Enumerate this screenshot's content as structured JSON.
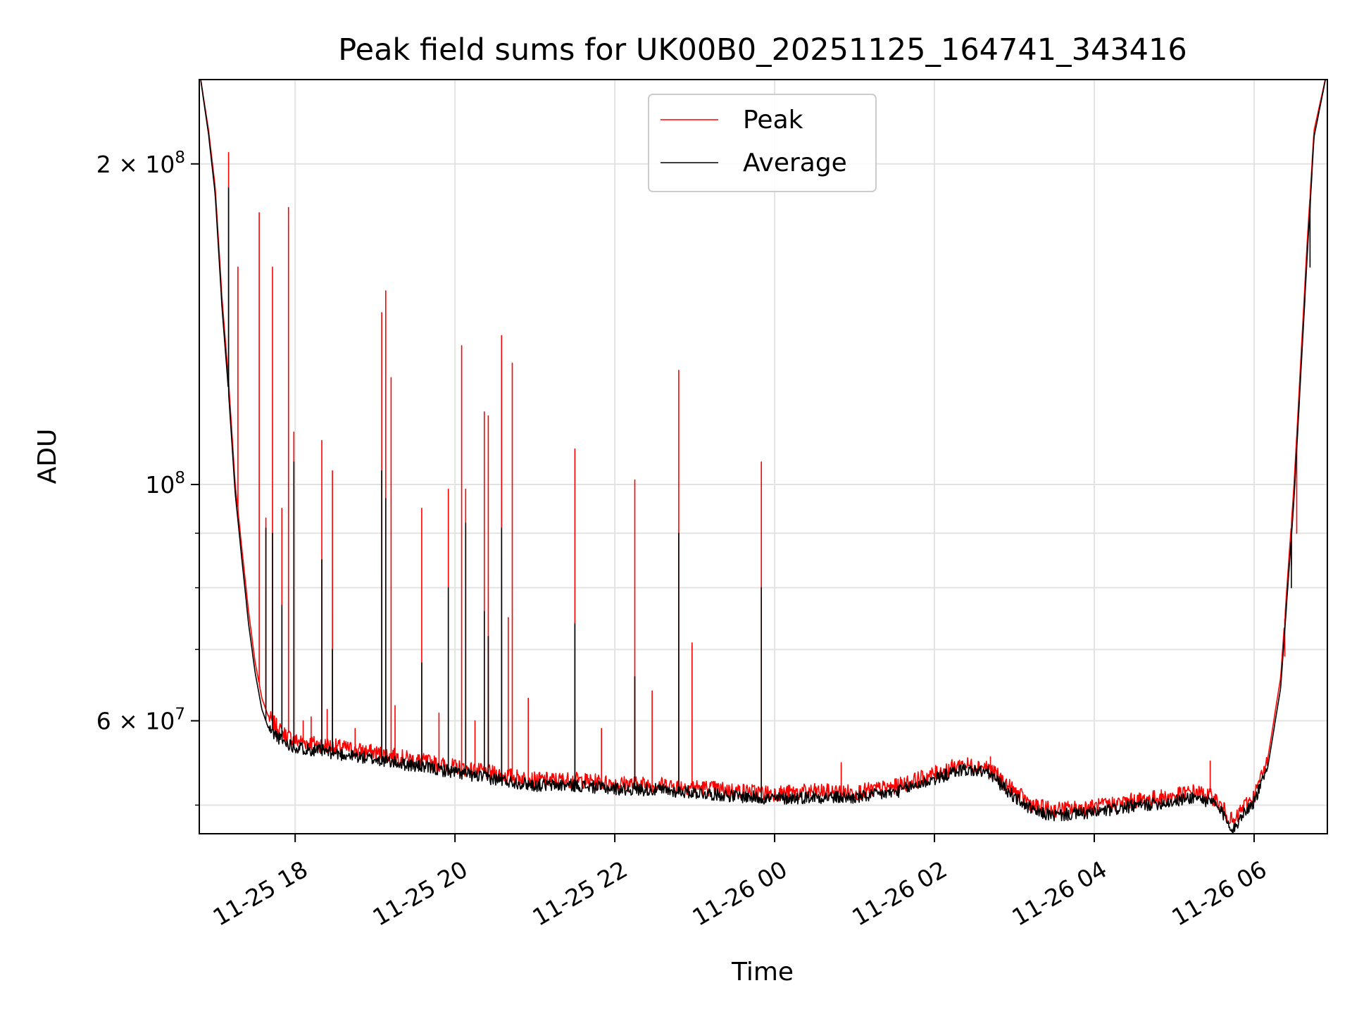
{
  "colors": {
    "peak": "#ff0000",
    "average": "#000000",
    "grid": "#e3e3e3",
    "frame": "#000000"
  },
  "chart_data": {
    "type": "line",
    "title": "Peak field sums for UK00B0_20251125_164741_343416",
    "xlabel": "Time",
    "ylabel": "ADU",
    "y_scale": "log",
    "ylim": [
      47000000,
      240000000
    ],
    "xlim": [
      "2025-11-25 16:48",
      "2025-11-26 06:55"
    ],
    "grid": true,
    "legend_position": "upper-center",
    "x_ticks": [
      {
        "t": "2025-11-25 18:00",
        "label": "11-25 18"
      },
      {
        "t": "2025-11-25 20:00",
        "label": "11-25 20"
      },
      {
        "t": "2025-11-25 22:00",
        "label": "11-25 22"
      },
      {
        "t": "2025-11-26 00:00",
        "label": "11-26 00"
      },
      {
        "t": "2025-11-26 02:00",
        "label": "11-26 02"
      },
      {
        "t": "2025-11-26 04:00",
        "label": "11-26 04"
      },
      {
        "t": "2025-11-26 06:00",
        "label": "11-26 06"
      }
    ],
    "y_major_ticks": [
      {
        "v": 200000000,
        "mantissa": "2",
        "exp": "8"
      },
      {
        "v": 100000000,
        "mantissa": "",
        "exp": "8"
      },
      {
        "v": 60000000,
        "mantissa": "6",
        "exp": "7"
      }
    ],
    "y_minor_ticks": [
      50000000,
      70000000,
      80000000,
      90000000
    ],
    "series": [
      {
        "name": "Peak",
        "color": "#ff0000",
        "baseline": [
          [
            "2025-11-25 16:48",
            245000000
          ],
          [
            "2025-11-25 16:55",
            215000000
          ],
          [
            "2025-11-25 17:00",
            190000000
          ],
          [
            "2025-11-25 17:05",
            150000000
          ],
          [
            "2025-11-25 17:10",
            125000000
          ],
          [
            "2025-11-25 17:15",
            100000000
          ],
          [
            "2025-11-25 17:20",
            87000000
          ],
          [
            "2025-11-25 17:25",
            76000000
          ],
          [
            "2025-11-25 17:30",
            68000000
          ],
          [
            "2025-11-25 17:35",
            63000000
          ],
          [
            "2025-11-25 17:40",
            60500000
          ],
          [
            "2025-11-25 17:50",
            58500000
          ],
          [
            "2025-11-25 18:00",
            57500000
          ],
          [
            "2025-11-25 19:00",
            56000000
          ],
          [
            "2025-11-25 20:00",
            54300000
          ],
          [
            "2025-11-25 20:30",
            53500000
          ],
          [
            "2025-11-25 21:00",
            52800000
          ],
          [
            "2025-11-25 21:30",
            52800000
          ],
          [
            "2025-11-25 22:00",
            52400000
          ],
          [
            "2025-11-25 22:30",
            52300000
          ],
          [
            "2025-11-25 23:00",
            52000000
          ],
          [
            "2025-11-25 23:30",
            51600000
          ],
          [
            "2025-11-26 00:00",
            51300000
          ],
          [
            "2025-11-26 00:30",
            51500000
          ],
          [
            "2025-11-26 01:00",
            51400000
          ],
          [
            "2025-11-26 01:30",
            52000000
          ],
          [
            "2025-11-26 02:00",
            53500000
          ],
          [
            "2025-11-26 02:20",
            54600000
          ],
          [
            "2025-11-26 02:40",
            54300000
          ],
          [
            "2025-11-26 03:00",
            51500000
          ],
          [
            "2025-11-26 03:15",
            49900000
          ],
          [
            "2025-11-26 03:30",
            49500000
          ],
          [
            "2025-11-26 04:00",
            49800000
          ],
          [
            "2025-11-26 04:30",
            50500000
          ],
          [
            "2025-11-26 05:00",
            51000000
          ],
          [
            "2025-11-26 05:15",
            51500000
          ],
          [
            "2025-11-26 05:30",
            50800000
          ],
          [
            "2025-11-26 05:40",
            49000000
          ],
          [
            "2025-11-26 05:45",
            48000000
          ],
          [
            "2025-11-26 05:50",
            49500000
          ],
          [
            "2025-11-26 06:00",
            51000000
          ],
          [
            "2025-11-26 06:10",
            55000000
          ],
          [
            "2025-11-26 06:20",
            66000000
          ],
          [
            "2025-11-26 06:30",
            100000000
          ],
          [
            "2025-11-26 06:40",
            170000000
          ],
          [
            "2025-11-26 06:45",
            215000000
          ],
          [
            "2025-11-26 06:55",
            245000000
          ]
        ],
        "spikes": [
          [
            "2025-11-25 17:10",
            205000000
          ],
          [
            "2025-11-25 17:17",
            160000000
          ],
          [
            "2025-11-25 17:33",
            180000000
          ],
          [
            "2025-11-25 17:38",
            93000000
          ],
          [
            "2025-11-25 17:43",
            160000000
          ],
          [
            "2025-11-25 17:50",
            95000000
          ],
          [
            "2025-11-25 17:55",
            182000000
          ],
          [
            "2025-11-25 17:59",
            112000000
          ],
          [
            "2025-11-25 18:06",
            60000000
          ],
          [
            "2025-11-25 18:12",
            60500000
          ],
          [
            "2025-11-25 18:20",
            110000000
          ],
          [
            "2025-11-25 18:24",
            61500000
          ],
          [
            "2025-11-25 18:28",
            103000000
          ],
          [
            "2025-11-25 18:45",
            59000000
          ],
          [
            "2025-11-25 19:05",
            145000000
          ],
          [
            "2025-11-25 19:08",
            152000000
          ],
          [
            "2025-11-25 19:12",
            126000000
          ],
          [
            "2025-11-25 19:15",
            62000000
          ],
          [
            "2025-11-25 19:35",
            95000000
          ],
          [
            "2025-11-25 19:48",
            61000000
          ],
          [
            "2025-11-25 19:55",
            99000000
          ],
          [
            "2025-11-25 20:05",
            135000000
          ],
          [
            "2025-11-25 20:08",
            99000000
          ],
          [
            "2025-11-25 20:15",
            60000000
          ],
          [
            "2025-11-25 20:22",
            117000000
          ],
          [
            "2025-11-25 20:25",
            116000000
          ],
          [
            "2025-11-25 20:35",
            138000000
          ],
          [
            "2025-11-25 20:40",
            75000000
          ],
          [
            "2025-11-25 20:43",
            130000000
          ],
          [
            "2025-11-25 20:55",
            63000000
          ],
          [
            "2025-11-25 21:30",
            108000000
          ],
          [
            "2025-11-25 21:50",
            59000000
          ],
          [
            "2025-11-25 22:15",
            101000000
          ],
          [
            "2025-11-25 22:28",
            64000000
          ],
          [
            "2025-11-25 22:48",
            128000000
          ],
          [
            "2025-11-25 22:58",
            71000000
          ],
          [
            "2025-11-25 23:50",
            105000000
          ],
          [
            "2025-11-26 00:50",
            54800000
          ],
          [
            "2025-11-26 02:42",
            55500000
          ],
          [
            "2025-11-26 05:27",
            55000000
          ],
          [
            "2025-11-26 06:23",
            69000000
          ],
          [
            "2025-11-26 06:28",
            84000000
          ],
          [
            "2025-11-26 06:32",
            90000000
          ],
          [
            "2025-11-26 06:42",
            180000000
          ]
        ]
      },
      {
        "name": "Average",
        "color": "#000000",
        "baseline": [
          [
            "2025-11-25 16:48",
            245000000
          ],
          [
            "2025-11-25 16:55",
            213000000
          ],
          [
            "2025-11-25 17:00",
            187000000
          ],
          [
            "2025-11-25 17:05",
            147000000
          ],
          [
            "2025-11-25 17:10",
            122000000
          ],
          [
            "2025-11-25 17:15",
            98000000
          ],
          [
            "2025-11-25 17:20",
            85000000
          ],
          [
            "2025-11-25 17:25",
            74000000
          ],
          [
            "2025-11-25 17:30",
            66500000
          ],
          [
            "2025-11-25 17:35",
            61500000
          ],
          [
            "2025-11-25 17:40",
            59000000
          ],
          [
            "2025-11-25 17:50",
            57500000
          ],
          [
            "2025-11-25 18:00",
            56700000
          ],
          [
            "2025-11-25 19:00",
            55200000
          ],
          [
            "2025-11-25 20:00",
            53700000
          ],
          [
            "2025-11-25 20:30",
            52900000
          ],
          [
            "2025-11-25 21:00",
            52200000
          ],
          [
            "2025-11-25 21:30",
            52200000
          ],
          [
            "2025-11-25 22:00",
            51800000
          ],
          [
            "2025-11-25 22:30",
            51700000
          ],
          [
            "2025-11-25 23:00",
            51400000
          ],
          [
            "2025-11-25 23:30",
            51000000
          ],
          [
            "2025-11-26 00:00",
            50700000
          ],
          [
            "2025-11-26 00:30",
            50900000
          ],
          [
            "2025-11-26 01:00",
            50800000
          ],
          [
            "2025-11-26 01:30",
            51400000
          ],
          [
            "2025-11-26 02:00",
            52900000
          ],
          [
            "2025-11-26 02:20",
            54000000
          ],
          [
            "2025-11-26 02:40",
            53700000
          ],
          [
            "2025-11-26 03:00",
            50900000
          ],
          [
            "2025-11-26 03:15",
            49300000
          ],
          [
            "2025-11-26 03:30",
            48900000
          ],
          [
            "2025-11-26 04:00",
            49200000
          ],
          [
            "2025-11-26 04:30",
            49900000
          ],
          [
            "2025-11-26 05:00",
            50400000
          ],
          [
            "2025-11-26 05:15",
            50900000
          ],
          [
            "2025-11-26 05:30",
            50200000
          ],
          [
            "2025-11-26 05:40",
            48400000
          ],
          [
            "2025-11-26 05:45",
            47300000
          ],
          [
            "2025-11-26 05:50",
            48900000
          ],
          [
            "2025-11-26 06:00",
            50400000
          ],
          [
            "2025-11-26 06:10",
            54000000
          ],
          [
            "2025-11-26 06:20",
            64500000
          ],
          [
            "2025-11-26 06:30",
            97000000
          ],
          [
            "2025-11-26 06:40",
            165000000
          ],
          [
            "2025-11-26 06:45",
            212000000
          ],
          [
            "2025-11-26 06:55",
            245000000
          ]
        ],
        "spikes": [
          [
            "2025-11-25 17:10",
            190000000
          ],
          [
            "2025-11-25 17:38",
            91000000
          ],
          [
            "2025-11-25 17:43",
            90000000
          ],
          [
            "2025-11-25 17:50",
            77000000
          ],
          [
            "2025-11-25 17:59",
            105000000
          ],
          [
            "2025-11-25 18:20",
            85000000
          ],
          [
            "2025-11-25 18:28",
            70000000
          ],
          [
            "2025-11-25 19:05",
            103000000
          ],
          [
            "2025-11-25 19:08",
            97000000
          ],
          [
            "2025-11-25 19:35",
            68000000
          ],
          [
            "2025-11-25 19:55",
            80000000
          ],
          [
            "2025-11-25 20:08",
            92000000
          ],
          [
            "2025-11-25 20:22",
            76000000
          ],
          [
            "2025-11-25 20:25",
            72000000
          ],
          [
            "2025-11-25 20:35",
            91000000
          ],
          [
            "2025-11-25 21:30",
            74000000
          ],
          [
            "2025-11-25 22:15",
            66000000
          ],
          [
            "2025-11-25 22:48",
            90000000
          ],
          [
            "2025-11-25 23:50",
            80000000
          ],
          [
            "2025-11-26 06:28",
            80000000
          ],
          [
            "2025-11-26 06:42",
            160000000
          ]
        ]
      }
    ]
  }
}
